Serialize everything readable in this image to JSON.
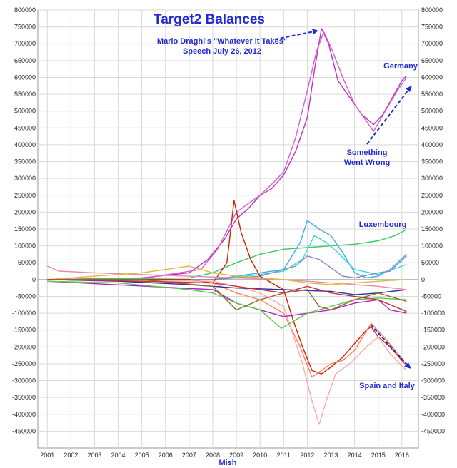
{
  "chart_data": {
    "type": "line",
    "title": "Target2 Balances",
    "xlabel": "Mish",
    "ylabel": "",
    "xlim": [
      2000.6,
      2016.7
    ],
    "ylim": [
      -500000,
      800000
    ],
    "x_ticks": [
      "2001",
      "2002",
      "2003",
      "2004",
      "2005",
      "2006",
      "2007",
      "2008",
      "2009",
      "2010",
      "2011",
      "2012",
      "2013",
      "2014",
      "2015",
      "2016"
    ],
    "y_ticks": [
      "800000",
      "750000",
      "700000",
      "650000",
      "600000",
      "550000",
      "500000",
      "450000",
      "400000",
      "350000",
      "300000",
      "250000",
      "200000",
      "150000",
      "100000",
      "50000",
      "0",
      "-50000",
      "-100000",
      "-150000",
      "-200000",
      "-250000",
      "-300000",
      "-350000",
      "-400000",
      "-450000"
    ],
    "grid": true,
    "legend": "none",
    "annotations": [
      {
        "text_lines": [
          "Mario Draghi's \"Whatever it Takes\"",
          "Speech July 26, 2012"
        ]
      },
      {
        "text_lines": [
          "Germany"
        ]
      },
      {
        "text_lines": [
          "Something",
          "Went Wrong"
        ]
      },
      {
        "text_lines": [
          "Luxembourg"
        ]
      },
      {
        "text_lines": [
          "Spain and Italy"
        ]
      }
    ],
    "series": [
      {
        "color": "#c030c0",
        "x": [
          2001,
          2005,
          2007,
          2007.8,
          2008.5,
          2009,
          2009.5,
          2010,
          2010.5,
          2011,
          2011.5,
          2012,
          2012.3,
          2012.6,
          2012.9,
          2013.3,
          2013.8,
          2014.3,
          2014.8,
          2015.2,
          2015.6,
          2016,
          2016.2
        ],
        "y": [
          0,
          5000,
          20000,
          60000,
          120000,
          180000,
          210000,
          250000,
          270000,
          310000,
          380000,
          480000,
          620000,
          745000,
          700000,
          590000,
          540000,
          490000,
          460000,
          490000,
          540000,
          590000,
          605000
        ]
      },
      {
        "color": "#d060d0",
        "x": [
          2001,
          2005,
          2007.5,
          2008.2,
          2009,
          2010,
          2010.6,
          2011,
          2011.5,
          2012,
          2012.4,
          2012.7,
          2013,
          2013.5,
          2014,
          2014.5,
          2014.8,
          2015.3,
          2015.8,
          2016.2
        ],
        "y": [
          0,
          3000,
          30000,
          90000,
          200000,
          250000,
          290000,
          320000,
          420000,
          560000,
          680000,
          735000,
          690000,
          600000,
          520000,
          470000,
          440000,
          500000,
          560000,
          600000
        ]
      },
      {
        "color": "#33cc66",
        "x": [
          2001,
          2007,
          2008,
          2009,
          2010,
          2011,
          2012,
          2013,
          2014,
          2015,
          2015.7,
          2016.2
        ],
        "y": [
          0,
          5000,
          20000,
          50000,
          75000,
          90000,
          95000,
          100000,
          105000,
          115000,
          130000,
          148000
        ]
      },
      {
        "color": "#44aaee",
        "x": [
          2001,
          2008,
          2009,
          2010,
          2011,
          2011.7,
          2012,
          2012.5,
          2013,
          2013.5,
          2014,
          2014.5,
          2015,
          2015.5,
          2016.2
        ],
        "y": [
          0,
          0,
          10000,
          20000,
          30000,
          110000,
          175000,
          150000,
          130000,
          80000,
          20000,
          5000,
          10000,
          30000,
          75000
        ]
      },
      {
        "color": "#33dddd",
        "x": [
          2001,
          2008,
          2010,
          2011,
          2011.8,
          2012.3,
          2012.8,
          2013.3,
          2014,
          2015,
          2016.2
        ],
        "y": [
          0,
          0,
          15000,
          25000,
          60000,
          130000,
          110000,
          80000,
          30000,
          15000,
          45000
        ]
      },
      {
        "color": "#8888bb",
        "x": [
          2001,
          2008,
          2010,
          2011.5,
          2012,
          2012.5,
          2013,
          2013.5,
          2014,
          2015,
          2015.5,
          2016.2
        ],
        "y": [
          0,
          0,
          10000,
          40000,
          70000,
          60000,
          35000,
          10000,
          5000,
          20000,
          25000,
          70000
        ]
      },
      {
        "color": "#cc2200",
        "x": [
          2001,
          2007,
          2008,
          2008.6,
          2008.9,
          2009.2,
          2009.6,
          2010,
          2010.5,
          2011,
          2011.4,
          2011.8,
          2012.2,
          2012.6,
          2013,
          2013.5,
          2014,
          2014.5,
          2014.7,
          2015,
          2015.5,
          2016,
          2016.2
        ],
        "y": [
          0,
          0,
          -10000,
          50000,
          235000,
          140000,
          60000,
          10000,
          -10000,
          -30000,
          -120000,
          -200000,
          -270000,
          -280000,
          -260000,
          -230000,
          -190000,
          -150000,
          -140000,
          -170000,
          -200000,
          -240000,
          -255000
        ]
      },
      {
        "color": "#ff8060",
        "x": [
          2001,
          2008,
          2009,
          2010,
          2011,
          2011.7,
          2012.2,
          2012.6,
          2013,
          2013.5,
          2014,
          2014.7,
          2015.3,
          2016,
          2016.2
        ],
        "y": [
          0,
          -10000,
          -40000,
          -60000,
          -100000,
          -200000,
          -290000,
          -270000,
          -250000,
          -240000,
          -210000,
          -130000,
          -175000,
          -235000,
          -258000
        ]
      },
      {
        "color": "#ffaaaa",
        "x": [
          2001,
          2008,
          2009,
          2010,
          2011,
          2011.8,
          2012.2,
          2012.5,
          2012.8,
          2013.2,
          2013.8,
          2014.5,
          2015,
          2015.5,
          2016.2
        ],
        "y": [
          0,
          -5000,
          -20000,
          -40000,
          -80000,
          -250000,
          -360000,
          -430000,
          -360000,
          -280000,
          -250000,
          -200000,
          -170000,
          -220000,
          -270000
        ]
      },
      {
        "color": "#aa22cc",
        "x": [
          2001,
          2008,
          2009,
          2010,
          2011,
          2012,
          2013,
          2014,
          2015,
          2015.5,
          2016.2
        ],
        "y": [
          -5000,
          -30000,
          -70000,
          -90000,
          -110000,
          -100000,
          -90000,
          -70000,
          -60000,
          -90000,
          -100000
        ]
      },
      {
        "color": "#2233aa",
        "x": [
          2001,
          2004,
          2007,
          2009,
          2011,
          2013,
          2014,
          2015,
          2016.2
        ],
        "y": [
          0,
          -5000,
          -15000,
          -25000,
          -30000,
          -35000,
          -45000,
          -40000,
          -30000
        ]
      },
      {
        "color": "#55cc44",
        "x": [
          2001,
          2004,
          2007,
          2008,
          2009,
          2010,
          2010.9,
          2011.5,
          2012,
          2013,
          2014,
          2015,
          2016.2
        ],
        "y": [
          -5000,
          -10000,
          -30000,
          -40000,
          -70000,
          -90000,
          -145000,
          -120000,
          -100000,
          -80000,
          -60000,
          -55000,
          -60000
        ]
      },
      {
        "color": "#ee88aa",
        "x": [
          2001,
          2001.5,
          2003,
          2005,
          2007,
          2009,
          2011,
          2013,
          2015,
          2016.2
        ],
        "y": [
          40000,
          25000,
          20000,
          15000,
          10000,
          5000,
          0,
          -10000,
          -20000,
          -30000
        ]
      },
      {
        "color": "#ddbb33",
        "x": [
          2001,
          2003,
          2005,
          2006,
          2007,
          2008,
          2009,
          2010,
          2011,
          2012,
          2013,
          2014,
          2015,
          2016.2
        ],
        "y": [
          0,
          10000,
          20000,
          30000,
          40000,
          20000,
          10000,
          5000,
          0,
          -10000,
          -15000,
          -10000,
          -5000,
          0
        ]
      },
      {
        "color": "#996633",
        "x": [
          2001,
          2005,
          2008,
          2009,
          2010,
          2011,
          2012,
          2012.5,
          2013,
          2014,
          2015,
          2016.2
        ],
        "y": [
          0,
          0,
          -20000,
          -90000,
          -60000,
          -40000,
          -30000,
          -80000,
          -90000,
          -60000,
          -40000,
          -65000
        ]
      },
      {
        "color": "#cc3333",
        "x": [
          2001,
          2005,
          2008,
          2009,
          2010,
          2011,
          2012,
          2013,
          2014,
          2015,
          2016.2
        ],
        "y": [
          0,
          -5000,
          -10000,
          -20000,
          -30000,
          -40000,
          -20000,
          -40000,
          -50000,
          -60000,
          -95000
        ]
      }
    ]
  }
}
